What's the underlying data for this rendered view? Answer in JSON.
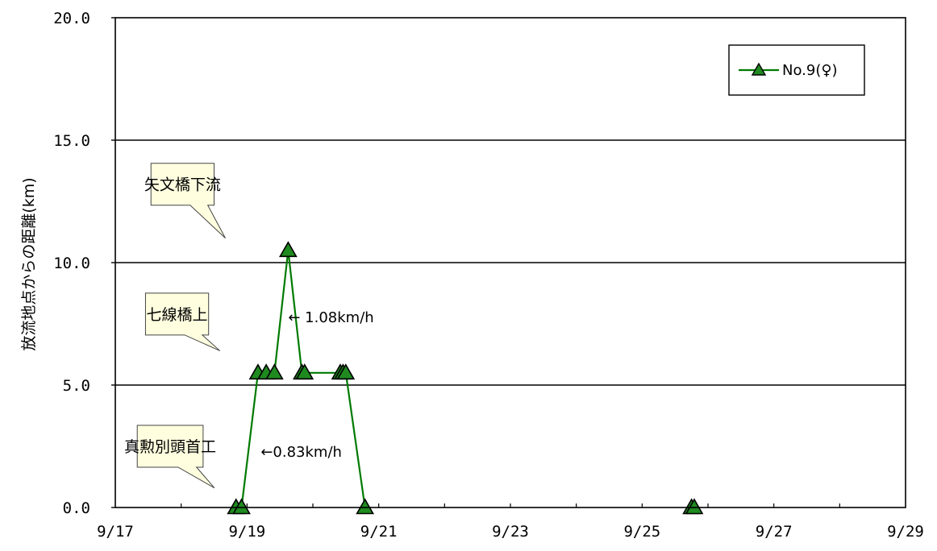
{
  "chart_data": {
    "type": "line",
    "title": "",
    "xlabel": "",
    "ylabel": "放流地点からの距離(km)",
    "xlim": [
      "9/17",
      "9/29"
    ],
    "ylim": [
      0,
      20
    ],
    "x_ticks": [
      "9/17",
      "9/19",
      "9/21",
      "9/23",
      "9/25",
      "9/27",
      "9/29"
    ],
    "y_ticks": [
      "0.0",
      "5.0",
      "10.0",
      "15.0",
      "20.0"
    ],
    "grid": "horizontal",
    "legend_position": "top-right",
    "series": [
      {
        "name": "No.9(♀)",
        "color": "#007a00",
        "marker": "triangle",
        "segments": [
          [
            {
              "x": "9/18 20:00",
              "y": 0.0
            },
            {
              "x": "9/18 22:00",
              "y": 0.0
            },
            {
              "x": "9/19 04:00",
              "y": 5.5
            },
            {
              "x": "9/19 07:00",
              "y": 5.5
            },
            {
              "x": "9/19 10:00",
              "y": 5.5
            },
            {
              "x": "9/19 15:00",
              "y": 10.5
            },
            {
              "x": "9/19 20:00",
              "y": 5.5
            },
            {
              "x": "9/19 21:00",
              "y": 5.5
            },
            {
              "x": "9/20 10:00",
              "y": 5.5
            },
            {
              "x": "9/20 11:00",
              "y": 5.5
            },
            {
              "x": "9/20 12:00",
              "y": 5.5
            },
            {
              "x": "9/20 19:00",
              "y": 0.0
            }
          ],
          [
            {
              "x": "9/25 18:00",
              "y": 0.0
            },
            {
              "x": "9/25 19:00",
              "y": 0.0
            }
          ]
        ]
      }
    ],
    "annotations": [
      {
        "text": "← 1.08km/h",
        "x": "9/19 15:00",
        "y": 7.8
      },
      {
        "text": "←0.83km/h",
        "x": "9/19 05:00",
        "y": 2.3
      }
    ],
    "callouts": [
      {
        "text": "矢文橋下流",
        "y": 13.2,
        "x_box": [
          "9/17 13:00",
          "9/18 12:00"
        ],
        "pointer_y": 11.0
      },
      {
        "text": "七線橋上",
        "y": 7.9,
        "x_box": [
          "9/17 11:00",
          "9/18 10:00"
        ],
        "pointer_y": 6.4
      },
      {
        "text": "真勲別頭首工",
        "y": 2.5,
        "x_box": [
          "9/17 08:00",
          "9/18 08:00"
        ],
        "pointer_y": 0.8
      }
    ]
  }
}
